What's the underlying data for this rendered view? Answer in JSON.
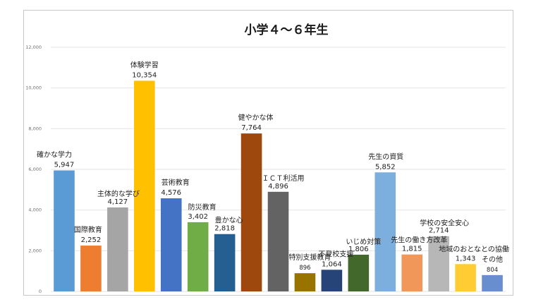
{
  "chart_data": {
    "type": "bar",
    "title": "小学４～６年生",
    "xlabel": "",
    "ylabel": "",
    "ylim": [
      0,
      12000
    ],
    "yticks": [
      0,
      2000,
      4000,
      6000,
      8000,
      10000,
      12000
    ],
    "ytick_labels": [
      "0",
      "2,000",
      "4,000",
      "6,000",
      "8,000",
      "10,000",
      "12,000"
    ],
    "grid": true,
    "legend": "none",
    "categories": [
      "確かな学力",
      "国際教育",
      "主体的な学び",
      "体験学習",
      "芸術教育",
      "防災教育",
      "豊かな心",
      "健やかな体",
      "ＩＣＴ利活用",
      "特別支援教育",
      "不登校支援",
      "いじめ対策",
      "先生の資質",
      "先生の働き方改革",
      "学校の安全安心",
      "地域のおとなとの協働",
      "その他"
    ],
    "values": [
      5947,
      2252,
      4127,
      10354,
      4576,
      3402,
      2818,
      7764,
      4896,
      896,
      1064,
      1806,
      5852,
      1815,
      2714,
      1343,
      804
    ],
    "value_labels": [
      "5,947",
      "2,252",
      "4,127",
      "10,354",
      "4,576",
      "3,402",
      "2,818",
      "7,764",
      "4,896",
      "896",
      "1,064",
      "1,806",
      "5,852",
      "1,815",
      "2,714",
      "1,343",
      "804"
    ],
    "colors": [
      "#5b9bd5",
      "#ed7d31",
      "#a5a5a5",
      "#ffc000",
      "#4472c4",
      "#70ad47",
      "#255e91",
      "#9e480e",
      "#636363",
      "#997300",
      "#264478",
      "#43682b",
      "#7cafdd",
      "#f1975a",
      "#b7b7b7",
      "#ffcd33",
      "#698ed0"
    ]
  }
}
